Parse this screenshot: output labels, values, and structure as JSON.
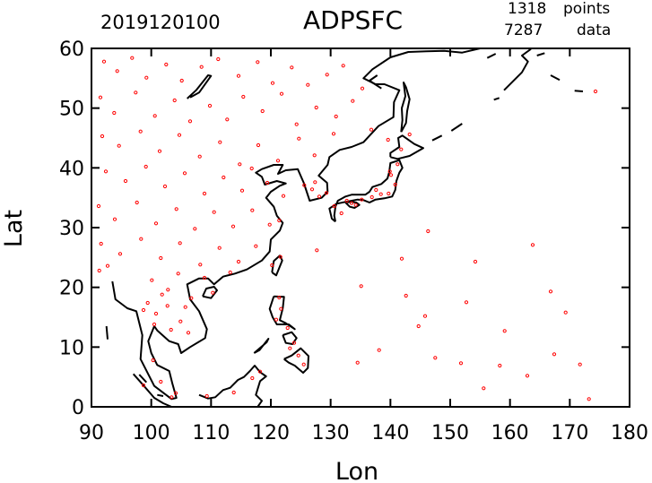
{
  "header": {
    "datetime": "2019120100",
    "title": "ADPSFC",
    "points_count": "1318",
    "points_label": "points",
    "data_count": "7287",
    "data_label": "data"
  },
  "chart_data": {
    "type": "scatter",
    "xlabel": "Lon",
    "ylabel": "Lat",
    "xlim": [
      90,
      180
    ],
    "ylim": [
      0,
      60
    ],
    "xticks": [
      90,
      100,
      110,
      120,
      130,
      140,
      150,
      160,
      170,
      180
    ],
    "yticks": [
      0,
      10,
      20,
      30,
      40,
      50,
      60
    ],
    "marker_color": "#ff0000",
    "coastline_color": "#000000",
    "grid": false,
    "series": [
      {
        "points": [
          [
            92.1,
            57.8
          ],
          [
            94.3,
            56.2
          ],
          [
            96.8,
            58.4
          ],
          [
            99.2,
            55.1
          ],
          [
            102.5,
            57.3
          ],
          [
            105.1,
            54.6
          ],
          [
            108.4,
            56.9
          ],
          [
            111.2,
            58.2
          ],
          [
            114.6,
            55.4
          ],
          [
            117.8,
            57.7
          ],
          [
            120.3,
            54.2
          ],
          [
            123.5,
            56.8
          ],
          [
            126.2,
            53.9
          ],
          [
            129.4,
            55.6
          ],
          [
            132.1,
            57.1
          ],
          [
            135.3,
            53.3
          ],
          [
            91.5,
            51.8
          ],
          [
            93.8,
            49.2
          ],
          [
            97.4,
            52.6
          ],
          [
            100.6,
            48.7
          ],
          [
            103.9,
            51.3
          ],
          [
            106.5,
            47.8
          ],
          [
            109.8,
            50.4
          ],
          [
            112.7,
            48.1
          ],
          [
            115.4,
            51.9
          ],
          [
            118.6,
            49.5
          ],
          [
            121.8,
            52.4
          ],
          [
            124.3,
            47.3
          ],
          [
            127.6,
            50.1
          ],
          [
            130.9,
            48.6
          ],
          [
            133.7,
            51.2
          ],
          [
            136.8,
            46.4
          ],
          [
            139.6,
            44.7
          ],
          [
            141.8,
            43.1
          ],
          [
            143.2,
            45.6
          ],
          [
            91.8,
            45.3
          ],
          [
            94.6,
            43.7
          ],
          [
            98.2,
            46.1
          ],
          [
            101.4,
            42.8
          ],
          [
            104.7,
            45.5
          ],
          [
            108.1,
            41.9
          ],
          [
            111.5,
            44.3
          ],
          [
            114.8,
            40.6
          ],
          [
            117.9,
            43.8
          ],
          [
            121.2,
            41.2
          ],
          [
            124.7,
            44.9
          ],
          [
            127.3,
            42.1
          ],
          [
            130.5,
            45.7
          ],
          [
            92.4,
            39.4
          ],
          [
            95.7,
            37.8
          ],
          [
            99.1,
            40.2
          ],
          [
            102.3,
            36.9
          ],
          [
            105.6,
            39.1
          ],
          [
            108.9,
            35.7
          ],
          [
            112.1,
            38.4
          ],
          [
            115.2,
            36.2
          ],
          [
            116.8,
            39.9
          ],
          [
            119.4,
            37.5
          ],
          [
            122.1,
            35.3
          ],
          [
            125.6,
            37.1
          ],
          [
            126.9,
            36.4
          ],
          [
            128.1,
            35.2
          ],
          [
            127.4,
            37.6
          ],
          [
            129.3,
            35.8
          ],
          [
            91.2,
            33.6
          ],
          [
            93.9,
            31.4
          ],
          [
            97.6,
            34.2
          ],
          [
            100.8,
            30.7
          ],
          [
            104.2,
            33.1
          ],
          [
            107.3,
            29.8
          ],
          [
            110.5,
            32.6
          ],
          [
            113.7,
            30.2
          ],
          [
            116.9,
            32.9
          ],
          [
            119.8,
            30.5
          ],
          [
            121.4,
            31.2
          ],
          [
            130.6,
            33.6
          ],
          [
            131.8,
            32.4
          ],
          [
            133.5,
            34.1
          ],
          [
            135.2,
            34.7
          ],
          [
            136.9,
            35.1
          ],
          [
            138.4,
            35.6
          ],
          [
            139.7,
            35.7
          ],
          [
            140.8,
            37.2
          ],
          [
            140.1,
            38.8
          ],
          [
            141.2,
            40.6
          ],
          [
            139.9,
            39.4
          ],
          [
            137.6,
            36.3
          ],
          [
            134.2,
            33.8
          ],
          [
            132.7,
            34.5
          ],
          [
            91.6,
            27.3
          ],
          [
            94.8,
            25.6
          ],
          [
            98.3,
            28.1
          ],
          [
            101.6,
            24.9
          ],
          [
            104.8,
            27.4
          ],
          [
            108.2,
            23.8
          ],
          [
            111.4,
            26.6
          ],
          [
            114.6,
            24.3
          ],
          [
            117.5,
            26.9
          ],
          [
            120.2,
            23.7
          ],
          [
            121.6,
            25.1
          ],
          [
            127.7,
            26.2
          ],
          [
            91.3,
            22.8
          ],
          [
            92.7,
            23.6
          ],
          [
            100.1,
            21.2
          ],
          [
            102.8,
            19.6
          ],
          [
            104.5,
            22.3
          ],
          [
            106.7,
            18.2
          ],
          [
            108.9,
            21.6
          ],
          [
            110.3,
            19.1
          ],
          [
            113.2,
            22.5
          ],
          [
            99.4,
            17.4
          ],
          [
            100.8,
            15.6
          ],
          [
            102.7,
            16.9
          ],
          [
            104.9,
            14.3
          ],
          [
            106.2,
            12.4
          ],
          [
            100.5,
            13.8
          ],
          [
            98.7,
            16.2
          ],
          [
            101.8,
            18.8
          ],
          [
            103.3,
            12.9
          ],
          [
            105.7,
            16.7
          ],
          [
            120.9,
            14.6
          ],
          [
            121.7,
            16.4
          ],
          [
            122.8,
            13.2
          ],
          [
            123.9,
            10.7
          ],
          [
            124.6,
            8.6
          ],
          [
            125.5,
            7.1
          ],
          [
            123.2,
            9.8
          ],
          [
            121.4,
            18.3
          ],
          [
            100.3,
            7.8
          ],
          [
            101.6,
            4.2
          ],
          [
            103.4,
            1.6
          ],
          [
            98.7,
            3.6
          ],
          [
            104.1,
            2.3
          ],
          [
            109.3,
            1.8
          ],
          [
            113.8,
            2.4
          ],
          [
            116.9,
            4.8
          ],
          [
            118.2,
            5.9
          ],
          [
            144.7,
            13.5
          ],
          [
            145.8,
            15.2
          ],
          [
            138.1,
            9.5
          ],
          [
            134.5,
            7.4
          ],
          [
            151.8,
            7.3
          ],
          [
            158.3,
            6.9
          ],
          [
            167.4,
            8.8
          ],
          [
            171.7,
            7.1
          ],
          [
            166.8,
            19.3
          ],
          [
            154.2,
            24.3
          ],
          [
            141.9,
            24.8
          ],
          [
            173.2,
            1.3
          ],
          [
            174.3,
            52.8
          ],
          [
            155.6,
            3.1
          ],
          [
            162.9,
            5.2
          ],
          [
            142.6,
            18.6
          ],
          [
            159.1,
            12.7
          ],
          [
            146.3,
            29.4
          ],
          [
            152.7,
            17.5
          ],
          [
            163.8,
            27.1
          ],
          [
            135.1,
            20.2
          ],
          [
            147.5,
            8.2
          ],
          [
            169.3,
            15.8
          ]
        ]
      }
    ]
  }
}
